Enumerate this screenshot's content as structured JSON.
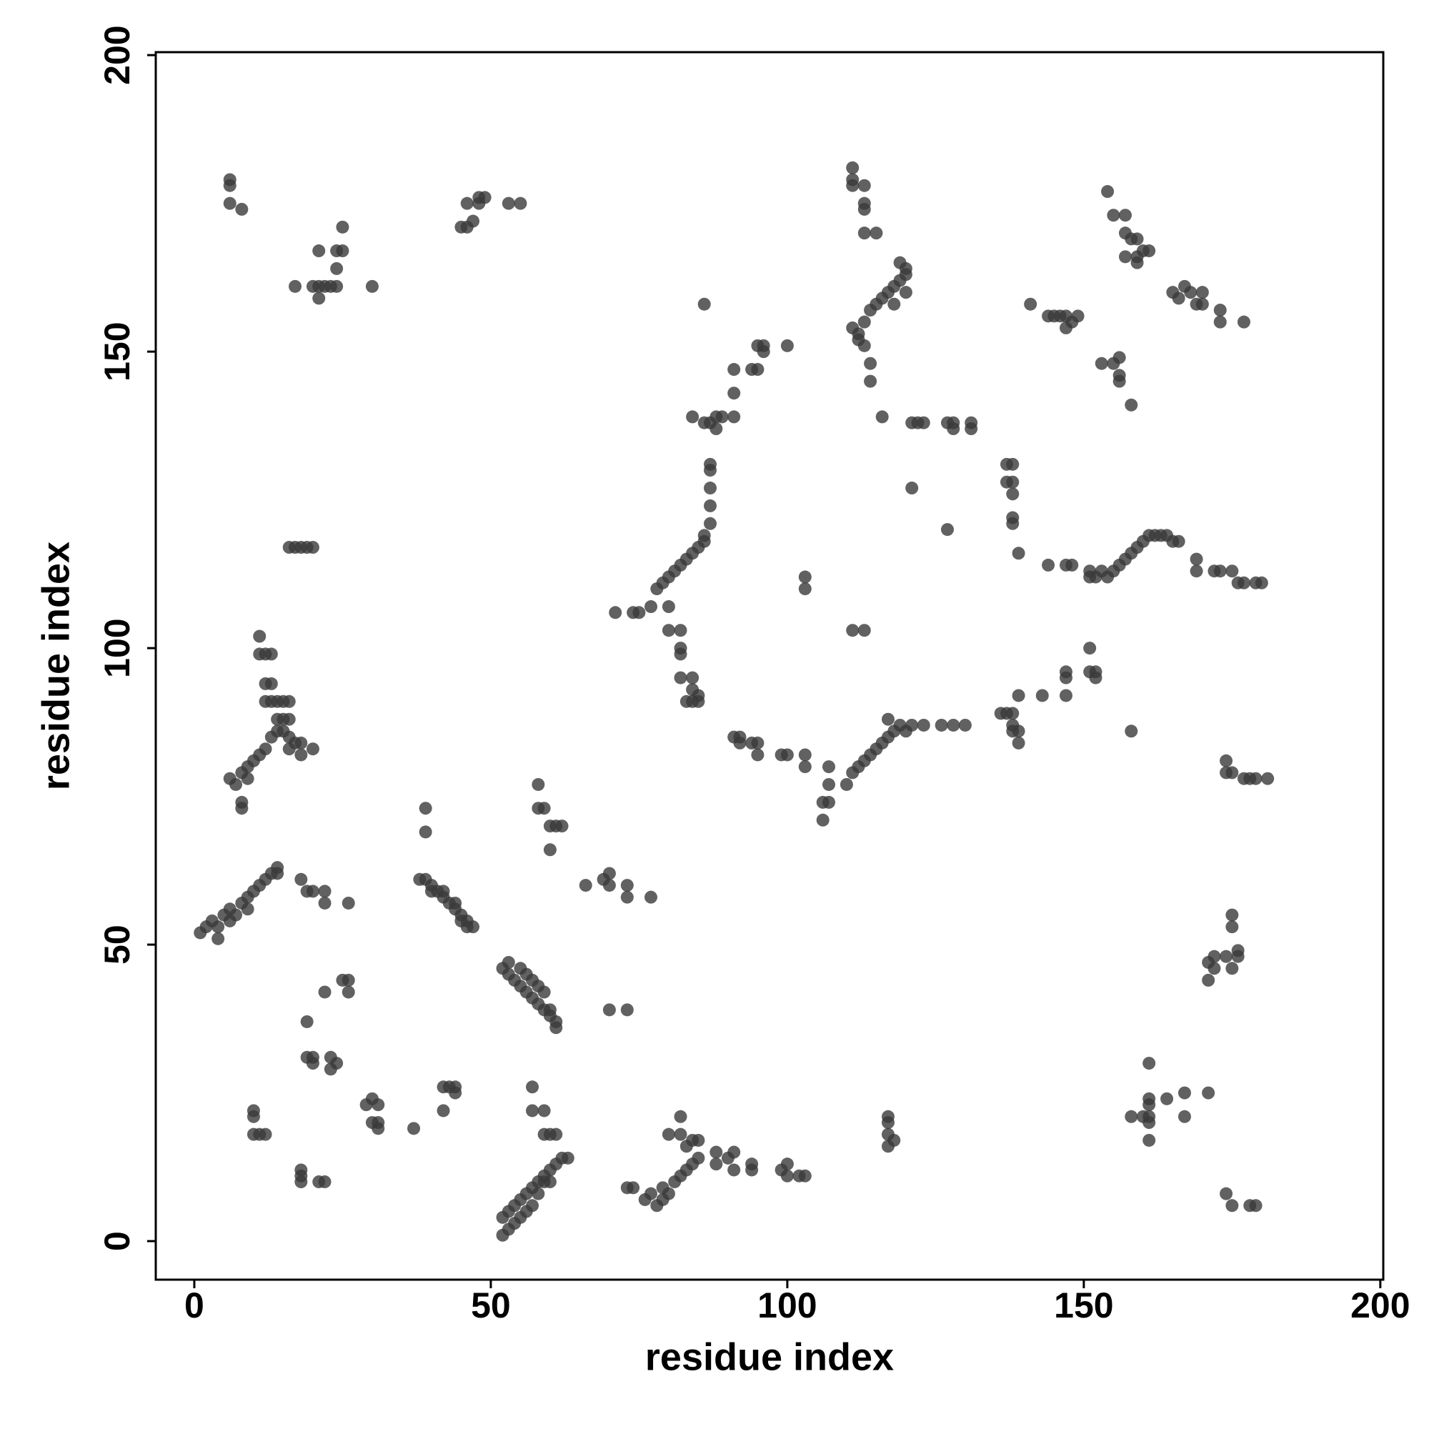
{
  "chart_data": {
    "type": "scatter",
    "x_label": "residue index",
    "y_label": "residue index",
    "xlim": [
      -6.5,
      200.5
    ],
    "ylim": [
      -6.5,
      200.5
    ],
    "xticks": [
      0,
      50,
      100,
      150,
      200
    ],
    "yticks": [
      0,
      50,
      100,
      150,
      200
    ],
    "grid": false,
    "color": "#3a3a3a",
    "x": [
      1,
      2,
      3,
      4,
      4,
      5,
      6,
      6,
      7,
      8,
      9,
      9,
      10,
      11,
      12,
      13,
      14,
      14,
      18,
      19,
      20,
      22,
      22,
      26,
      6,
      7,
      8,
      9,
      10,
      11,
      12,
      13,
      14,
      15,
      16,
      16,
      17,
      18,
      18,
      20,
      8,
      8,
      9,
      11,
      11,
      12,
      13,
      12,
      13,
      12,
      13,
      14,
      15,
      16,
      14,
      15,
      16,
      16,
      17,
      18,
      19,
      20,
      6,
      6,
      6,
      8,
      17,
      20,
      21,
      21,
      22,
      23,
      24,
      24,
      24,
      25,
      25,
      21,
      30,
      45,
      46,
      46,
      47,
      48,
      48,
      49,
      53,
      55,
      38,
      39,
      40,
      41,
      42,
      43,
      44,
      45,
      46,
      47,
      40,
      42,
      44,
      45,
      46,
      39,
      39,
      52,
      53,
      54,
      55,
      56,
      57,
      58,
      59,
      60,
      61,
      53,
      55,
      56,
      57,
      58,
      59,
      60,
      61,
      58,
      58,
      59,
      60,
      60,
      61,
      62,
      66,
      69,
      70,
      70,
      73,
      73,
      77,
      70,
      73,
      10,
      10,
      10,
      11,
      12,
      18,
      18,
      18,
      21,
      22,
      19,
      19,
      20,
      20,
      22,
      23,
      23,
      24,
      25,
      26,
      26,
      29,
      30,
      30,
      31,
      31,
      31,
      37,
      42,
      42,
      43,
      44,
      44,
      52,
      52,
      53,
      53,
      54,
      54,
      55,
      55,
      56,
      56,
      57,
      57,
      58,
      58,
      59,
      59,
      60,
      60,
      61,
      62,
      63,
      57,
      57,
      59,
      59,
      60,
      61,
      73,
      74,
      76,
      77,
      78,
      79,
      79,
      80,
      81,
      82,
      83,
      84,
      85,
      80,
      82,
      82,
      83,
      84,
      85,
      88,
      88,
      90,
      91,
      91,
      94,
      94,
      99,
      100,
      100,
      102,
      103,
      71,
      74,
      75,
      77,
      78,
      79,
      80,
      81,
      82,
      83,
      84,
      85,
      86,
      87,
      87,
      87,
      87,
      87,
      86,
      80,
      80,
      82,
      82,
      82,
      82,
      84,
      84,
      84,
      85,
      85,
      83,
      84,
      86,
      87,
      88,
      89,
      88,
      91,
      91,
      91,
      94,
      95,
      95,
      96,
      96,
      100,
      86,
      91,
      92,
      92,
      94,
      95,
      95,
      99,
      100,
      103,
      103,
      103,
      103,
      106,
      106,
      107,
      107,
      107,
      110,
      111,
      112,
      113,
      114,
      115,
      116,
      117,
      118,
      119,
      120,
      121,
      123,
      126,
      128,
      130,
      117,
      111,
      113,
      111,
      111,
      111,
      113,
      113,
      113,
      113,
      115,
      111,
      112,
      113,
      114,
      115,
      116,
      117,
      118,
      119,
      119,
      120,
      120,
      118,
      120,
      112,
      113,
      114,
      114,
      116,
      121,
      122,
      123,
      127,
      128,
      128,
      131,
      131,
      121,
      127,
      137,
      138,
      137,
      138,
      138,
      138,
      138,
      139,
      136,
      137,
      138,
      138,
      138,
      139,
      139,
      139,
      143,
      147,
      147,
      147,
      151,
      152,
      152,
      151,
      141,
      144,
      145,
      146,
      147,
      147,
      148,
      149,
      144,
      147,
      148,
      151,
      151,
      152,
      153,
      154,
      155,
      156,
      157,
      158,
      159,
      160,
      161,
      162,
      163,
      164,
      165,
      166,
      169,
      169,
      172,
      173,
      175,
      176,
      177,
      179,
      180,
      154,
      155,
      157,
      157,
      157,
      158,
      159,
      159,
      159,
      160,
      161,
      165,
      166,
      167,
      168,
      169,
      170,
      170,
      173,
      173,
      177,
      153,
      155,
      156,
      156,
      156,
      158,
      158,
      174,
      174,
      175,
      177,
      178,
      179,
      181,
      175,
      175,
      171,
      172,
      171,
      172,
      174,
      175,
      176,
      176,
      161,
      161,
      161,
      161,
      161,
      160,
      158,
      161,
      164,
      167,
      167,
      171,
      174,
      175,
      178,
      179,
      117,
      117,
      117,
      117,
      118
    ],
    "values": [
      52,
      53,
      54,
      53,
      51,
      55,
      54,
      56,
      55,
      57,
      58,
      56,
      59,
      60,
      61,
      62,
      63,
      62,
      61,
      59,
      59,
      59,
      57,
      57,
      78,
      77,
      79,
      80,
      81,
      82,
      83,
      85,
      86,
      86,
      85,
      83,
      84,
      84,
      82,
      83,
      74,
      73,
      78,
      99,
      102,
      99,
      99,
      94,
      94,
      91,
      91,
      91,
      91,
      91,
      88,
      88,
      88,
      117,
      117,
      117,
      117,
      117,
      179,
      178,
      175,
      174,
      161,
      161,
      161,
      159,
      161,
      161,
      161,
      164,
      167,
      167,
      171,
      167,
      161,
      171,
      171,
      175,
      172,
      175,
      176,
      176,
      175,
      175,
      61,
      61,
      60,
      59,
      58,
      57,
      56,
      55,
      54,
      53,
      59,
      59,
      57,
      54,
      53,
      73,
      69,
      46,
      45,
      44,
      43,
      42,
      41,
      40,
      39,
      38,
      37,
      47,
      46,
      45,
      44,
      43,
      42,
      39,
      36,
      77,
      73,
      73,
      70,
      66,
      70,
      70,
      60,
      61,
      62,
      60,
      60,
      58,
      58,
      39,
      39,
      22,
      21,
      18,
      18,
      18,
      12,
      11,
      10,
      10,
      10,
      37,
      31,
      31,
      30,
      42,
      31,
      29,
      30,
      44,
      44,
      42,
      23,
      24,
      20,
      20,
      23,
      19,
      19,
      22,
      26,
      26,
      26,
      25,
      4,
      1,
      2,
      5,
      3,
      6,
      4,
      7,
      5,
      8,
      6,
      9,
      8,
      10,
      10,
      11,
      10,
      12,
      13,
      14,
      14,
      26,
      22,
      22,
      18,
      18,
      18,
      9,
      9,
      7,
      8,
      6,
      7,
      9,
      8,
      10,
      11,
      12,
      13,
      14,
      18,
      18,
      21,
      16,
      17,
      17,
      15,
      13,
      14,
      15,
      12,
      13,
      12,
      12,
      11,
      13,
      11,
      11,
      106,
      106,
      106,
      107,
      110,
      111,
      112,
      113,
      114,
      115,
      116,
      117,
      119,
      121,
      124,
      127,
      130,
      131,
      118,
      107,
      103,
      103,
      100,
      99,
      95,
      95,
      93,
      91,
      92,
      91,
      91,
      139,
      138,
      138,
      137,
      139,
      139,
      139,
      143,
      147,
      147,
      147,
      151,
      151,
      150,
      151,
      158,
      85,
      84,
      85,
      84,
      84,
      82,
      82,
      82,
      82,
      80,
      112,
      110,
      74,
      71,
      74,
      77,
      80,
      77,
      79,
      80,
      81,
      82,
      83,
      84,
      85,
      86,
      87,
      86,
      87,
      87,
      87,
      87,
      87,
      88,
      103,
      103,
      181,
      179,
      178,
      178,
      175,
      174,
      170,
      170,
      154,
      153,
      155,
      157,
      158,
      159,
      160,
      161,
      162,
      165,
      163,
      164,
      158,
      160,
      152,
      151,
      148,
      145,
      139,
      138,
      138,
      138,
      138,
      137,
      138,
      137,
      138,
      127,
      120,
      131,
      131,
      128,
      128,
      126,
      122,
      121,
      116,
      89,
      89,
      89,
      87,
      86,
      86,
      84,
      92,
      92,
      92,
      95,
      96,
      96,
      96,
      95,
      100,
      158,
      156,
      156,
      156,
      156,
      154,
      155,
      156,
      114,
      114,
      114,
      113,
      112,
      112,
      113,
      112,
      113,
      114,
      115,
      116,
      117,
      118,
      119,
      119,
      119,
      119,
      118,
      118,
      115,
      113,
      113,
      113,
      113,
      111,
      111,
      111,
      111,
      177,
      173,
      173,
      170,
      166,
      169,
      169,
      166,
      165,
      167,
      167,
      160,
      159,
      161,
      160,
      158,
      158,
      160,
      157,
      155,
      155,
      148,
      148,
      149,
      146,
      145,
      141,
      86,
      81,
      79,
      79,
      78,
      78,
      78,
      78,
      55,
      53,
      47,
      46,
      44,
      48,
      48,
      46,
      49,
      48,
      30,
      24,
      23,
      20,
      21,
      21,
      21,
      17,
      24,
      25,
      21,
      25,
      8,
      6,
      6,
      6,
      21,
      20,
      18,
      16,
      17
    ]
  }
}
